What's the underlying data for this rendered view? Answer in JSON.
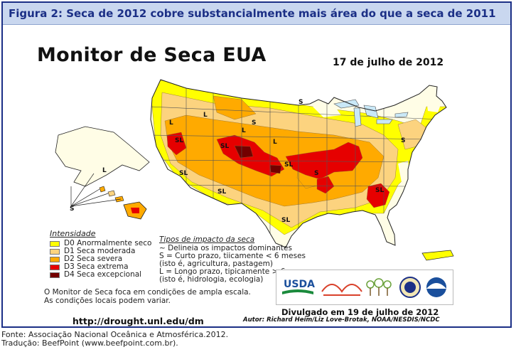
{
  "figure": {
    "caption": "Figura 2: Seca de 2012 cobre substancialmente mais área do que a seca de 2011"
  },
  "map": {
    "title": "Monitor de Seca EUA",
    "date": "17 de julho de 2012",
    "impact_labels": [
      "S",
      "SL",
      "L",
      "SL",
      "SL",
      "S",
      "SL",
      "SL",
      "S",
      "L",
      "L",
      "S",
      "SL",
      "SL",
      "L",
      "S",
      "L"
    ],
    "colors": {
      "D0": "#ffff00",
      "D1": "#fcd37f",
      "D2": "#ffaa00",
      "D3": "#e60000",
      "D4": "#730000",
      "water": "#c9e8f7",
      "none": "#ffffff",
      "border": "#1b2f86"
    }
  },
  "legend": {
    "intensity_title": "Intensidade",
    "levels": [
      {
        "code": "D0",
        "label": "D0 Anormalmente seco",
        "color": "#ffff00"
      },
      {
        "code": "D1",
        "label": "D1 Seca moderada",
        "color": "#fcd37f"
      },
      {
        "code": "D2",
        "label": "D2 Seca severa",
        "color": "#ffaa00"
      },
      {
        "code": "D3",
        "label": "D3 Seca extrema",
        "color": "#e60000"
      },
      {
        "code": "D4",
        "label": "D4 Seca excepcional",
        "color": "#730000"
      }
    ],
    "impact_title": "Tipos de impacto da seca",
    "impact_lines": [
      "~ Delineia os impactos dominantes",
      "S = Curto prazo, tiicamente < 6 meses",
      "(isto é, agricultura, pastagem)",
      "L = Longo prazo, tipicamente > 6 meses",
      "(isto é, hidrologia, ecologia)"
    ],
    "note_lines": [
      "O Monitor de Seca foca em condições de ampla escala.",
      "As condições locais podem variar."
    ]
  },
  "credits": {
    "url": "http://drought.unl.edu/dm",
    "released": "Divulgado em 19 de julho de 2012",
    "authors": "Autor: Richard Heim/Liz Love-Brotak, NOAA/NESDIS/NCDC",
    "logos": [
      "usda-logo",
      "ndmc-logo",
      "doc-seal",
      "noaa-logo"
    ],
    "usda_text": "USDA"
  },
  "footer": {
    "source": "Fonte: Associação Nacional Oceânica e Atmosférica.2012.",
    "translation": "Tradução: BeefPoint (www.beefpoint.com.br)."
  }
}
